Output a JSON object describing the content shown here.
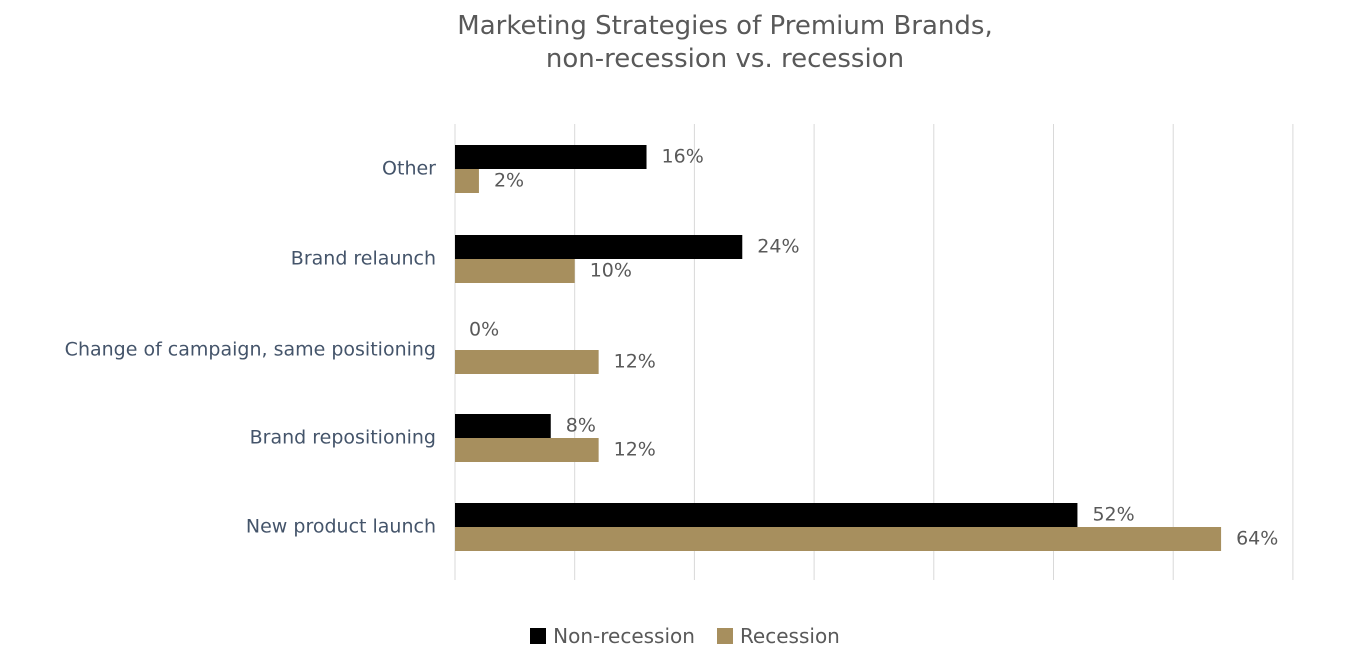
{
  "chart_data": {
    "type": "bar",
    "orientation": "horizontal",
    "title": "Marketing Strategies of Premium Brands,",
    "subtitle": "non-recession vs. recession",
    "categories": [
      "Other",
      "Brand relaunch",
      "Change of campaign, same positioning",
      "Brand repositioning",
      "New product launch"
    ],
    "series": [
      {
        "name": "Non-recession",
        "color": "#000000",
        "values": [
          16,
          24,
          0,
          8,
          52
        ],
        "labels": [
          "16%",
          "24%",
          "0%",
          "8%",
          "52%"
        ]
      },
      {
        "name": "Recession",
        "color": "#A78F5E",
        "values": [
          2,
          10,
          12,
          12,
          64
        ],
        "labels": [
          "2%",
          "10%",
          "12%",
          "12%",
          "64%"
        ]
      }
    ],
    "xlim": [
      0,
      70
    ],
    "grid_step": 10,
    "grid": true,
    "legend": "bottom",
    "xlabel": "",
    "ylabel": ""
  }
}
